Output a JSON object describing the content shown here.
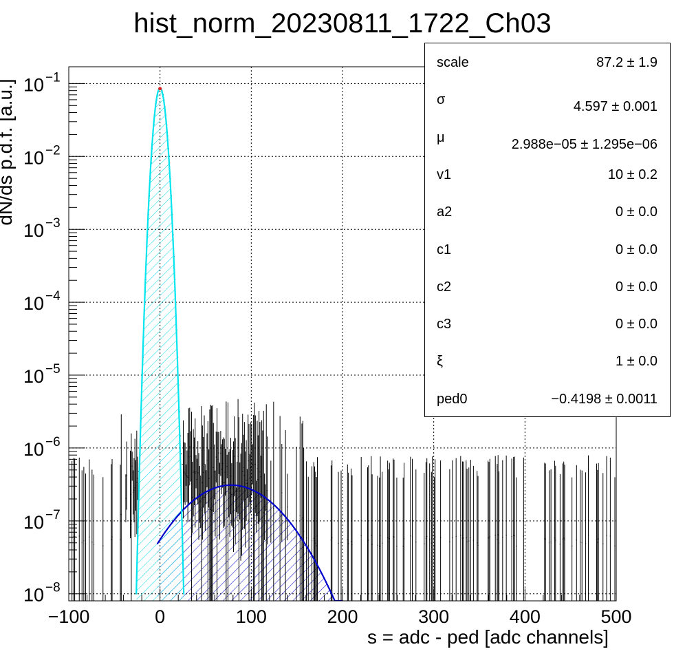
{
  "title": "hist_norm_20230811_1722_Ch03",
  "stats": [
    {
      "name": "scale",
      "value": "87.2 ± 1.9"
    },
    {
      "name": "σ",
      "value": "4.597 ± 0.001"
    },
    {
      "name": "μ",
      "value": "2.988e−05 ± 1.295e−06"
    },
    {
      "name": "v1",
      "value": "10 ± 0.2"
    },
    {
      "name": "a2",
      "value": "0 ± 0.0"
    },
    {
      "name": "c1",
      "value": "0 ± 0.0"
    },
    {
      "name": "c2",
      "value": "0 ± 0.0"
    },
    {
      "name": "c3",
      "value": "0 ± 0.0"
    },
    {
      "name": "ξ",
      "value": "1 ± 0.0"
    },
    {
      "name": "ped0",
      "value": "−0.4198 ± 0.0011"
    }
  ],
  "chart_data": {
    "type": "histogram",
    "title": "hist_norm_20230811_1722_Ch03",
    "xlabel": "s = adc - ped [adc channels]",
    "ylabel": "dN/ds p.d.f. [a.u.]",
    "xlim": [
      -100,
      500
    ],
    "ylim": [
      8e-09,
      0.17
    ],
    "log_y": true,
    "grid": true,
    "x_ticks": [
      -100,
      0,
      100,
      200,
      300,
      400,
      500
    ],
    "y_ticks": [
      {
        "base": "10",
        "exp": "−8",
        "value": 1e-08
      },
      {
        "base": "10",
        "exp": "−7",
        "value": 1e-07
      },
      {
        "base": "10",
        "exp": "−6",
        "value": 1e-06
      },
      {
        "base": "10",
        "exp": "−5",
        "value": 1e-05
      },
      {
        "base": "10",
        "exp": "−4",
        "value": 0.0001
      },
      {
        "base": "10",
        "exp": "−3",
        "value": 0.001
      },
      {
        "base": "10",
        "exp": "−2",
        "value": 0.01
      },
      {
        "base": "10",
        "exp": "−1",
        "value": 0.1
      }
    ],
    "pedestal_fit": {
      "color": "#00e5ee",
      "peak": 0.087,
      "mu": 0,
      "sigma": 4.597,
      "x_range": [
        -26,
        26
      ]
    },
    "signal_fit": {
      "color": "#0000cc",
      "peak": 3.1e-07,
      "mu": 78,
      "sigma": 42,
      "x_range": [
        -3,
        200
      ]
    },
    "histogram": {
      "color": "#000000",
      "bin_width": 1,
      "x_range": [
        -100,
        500
      ],
      "floor_level": 5e-08
    }
  }
}
